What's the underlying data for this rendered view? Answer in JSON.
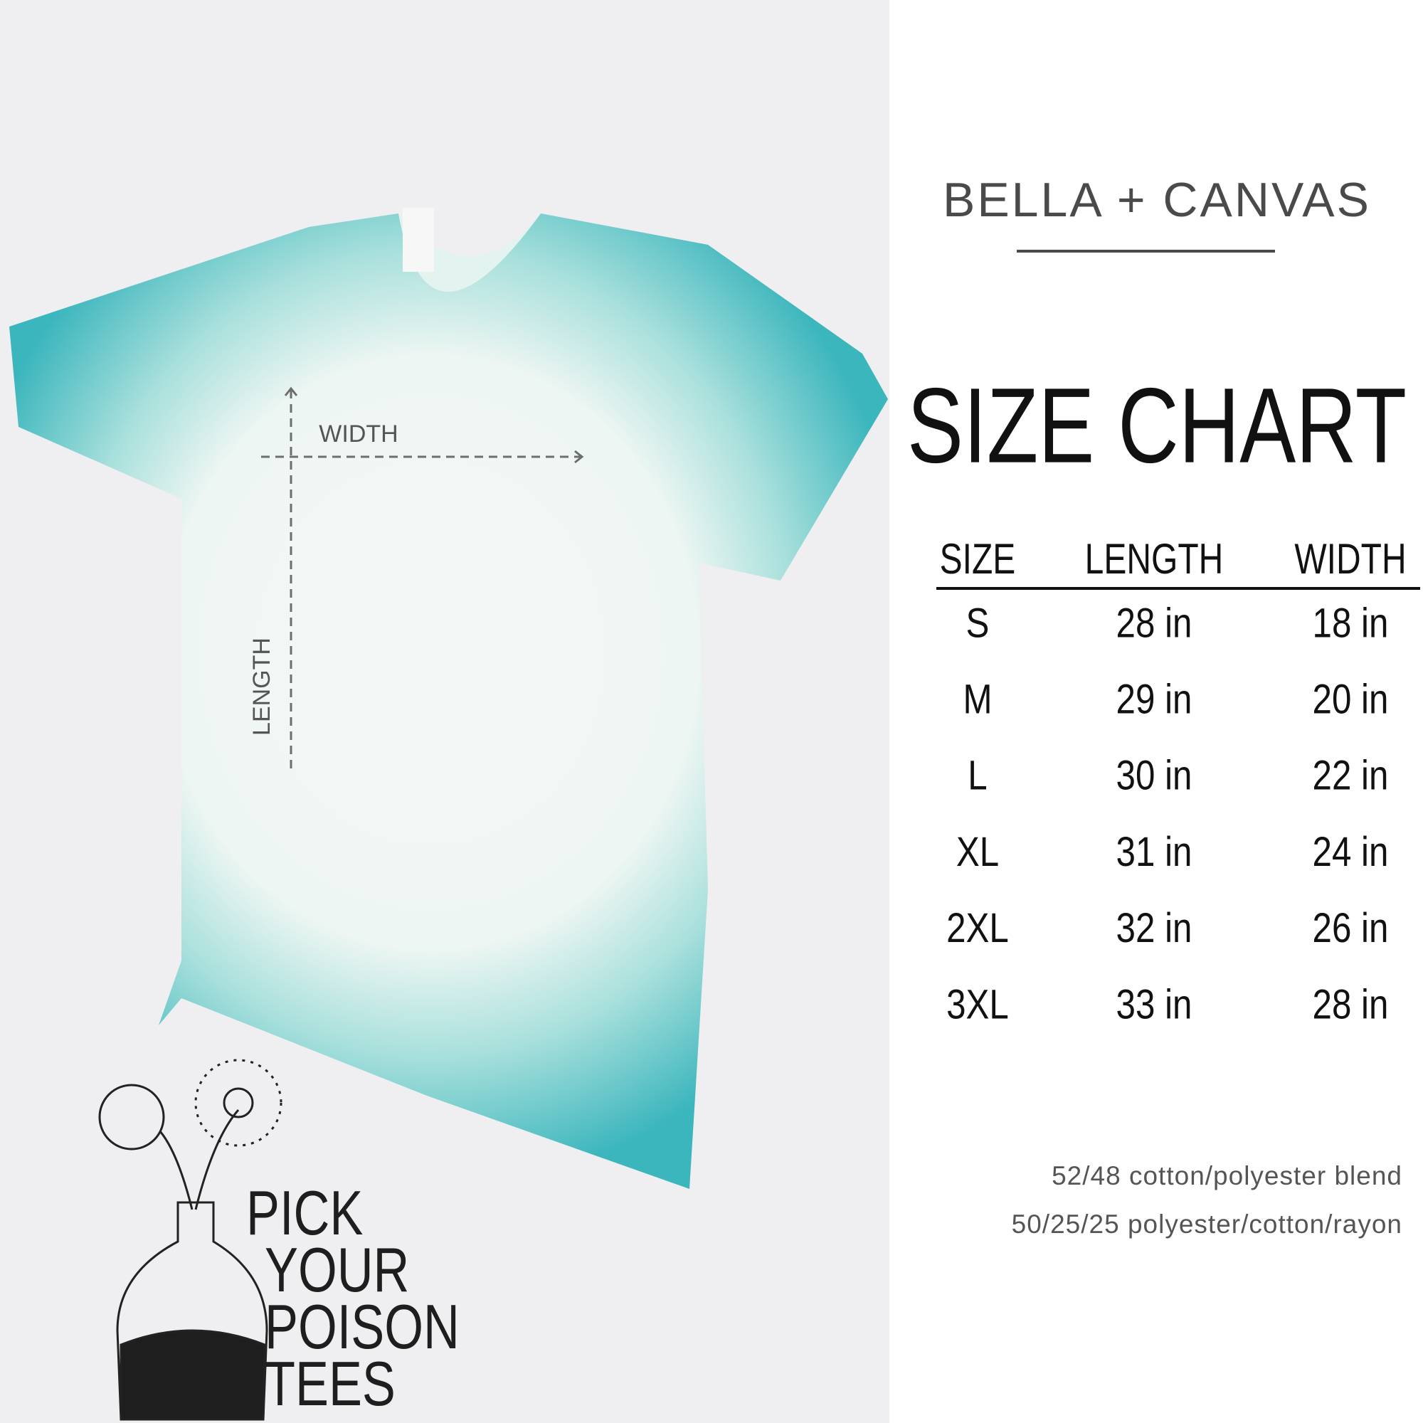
{
  "brand": "BELLA + CANVAS",
  "title": "SIZE CHART",
  "shirt": {
    "width_label": "WIDTH",
    "length_label": "LENGTH"
  },
  "table": {
    "header": [
      "SIZE",
      "LENGTH",
      "WIDTH"
    ],
    "rows": [
      [
        "S",
        "28 in",
        "18 in"
      ],
      [
        "M",
        "29 in",
        "20 in"
      ],
      [
        "L",
        "30 in",
        "22 in"
      ],
      [
        "XL",
        "31 in",
        "24 in"
      ],
      [
        "2XL",
        "32 in",
        "26 in"
      ],
      [
        "3XL",
        "33 in",
        "28 in"
      ]
    ]
  },
  "notes": [
    "52/48 cotton/polyester blend",
    "50/25/25 polyester/cotton/rayon"
  ],
  "logo": [
    "PICK",
    "YOUR",
    "POISON",
    "TEES"
  ]
}
